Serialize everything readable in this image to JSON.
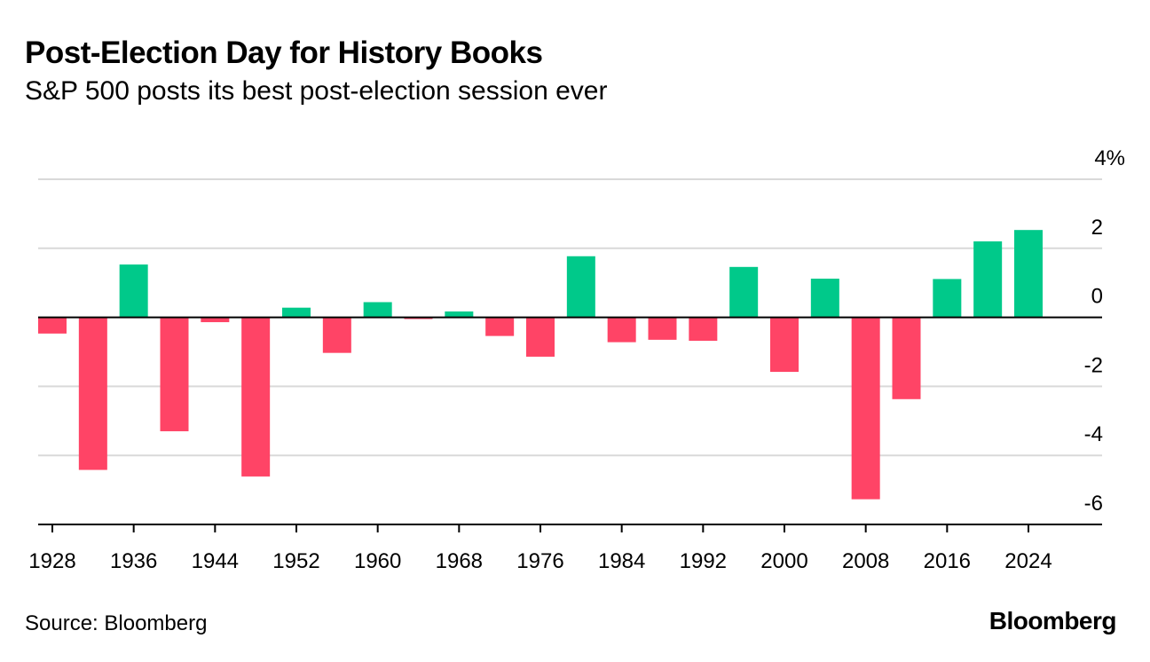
{
  "title": "Post-Election Day for History Books",
  "subtitle": "S&P 500 posts its best post-election session ever",
  "source": "Source: Bloomberg",
  "brand": "Bloomberg",
  "colors": {
    "positive": "#00c98a",
    "negative": "#ff4466",
    "grid": "#d9d9d9",
    "axis": "#000000"
  },
  "chart_data": {
    "type": "bar",
    "title": "Post-Election Day for History Books",
    "subtitle": "S&P 500 posts its best post-election session ever",
    "xlabel": "",
    "ylabel": "%",
    "ylim": [
      -6,
      4
    ],
    "yticks": [
      4,
      2,
      0,
      -2,
      -4,
      -6
    ],
    "ytick_labels": [
      "4%",
      "2",
      "0",
      "-2",
      "-4",
      "-6"
    ],
    "xticks": [
      1928,
      1936,
      1944,
      1952,
      1960,
      1968,
      1976,
      1984,
      1992,
      2000,
      2008,
      2016,
      2024
    ],
    "xtick_labels": [
      "1928",
      "1936",
      "1944",
      "1952",
      "1960",
      "1968",
      "1976",
      "1984",
      "1992",
      "2000",
      "2008",
      "2016",
      "2024"
    ],
    "categories": [
      1928,
      1932,
      1936,
      1940,
      1944,
      1948,
      1952,
      1956,
      1960,
      1964,
      1968,
      1972,
      1976,
      1980,
      1984,
      1988,
      1992,
      1996,
      2000,
      2004,
      2008,
      2012,
      2016,
      2020,
      2024
    ],
    "values": [
      -0.47,
      -4.42,
      1.53,
      -3.3,
      -0.14,
      -4.61,
      0.28,
      -1.03,
      0.44,
      -0.05,
      0.17,
      -0.54,
      -1.14,
      1.77,
      -0.72,
      -0.65,
      -0.68,
      1.46,
      -1.58,
      1.12,
      -5.27,
      -2.37,
      1.11,
      2.2,
      2.53
    ],
    "grid": true
  }
}
